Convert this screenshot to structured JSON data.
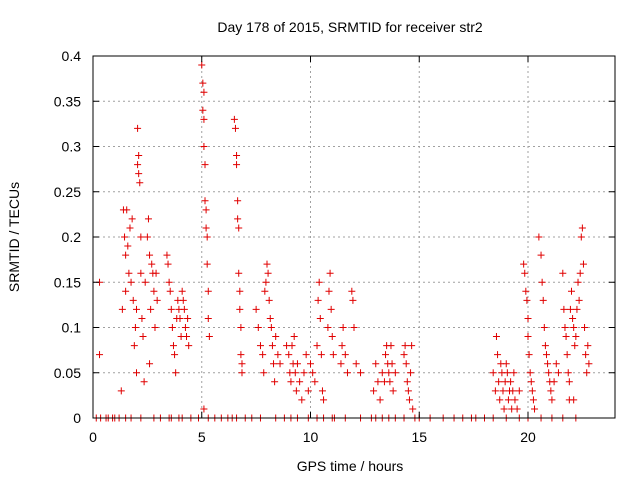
{
  "chart_data": {
    "type": "scatter",
    "title": "Day 178 of 2015, SRMTID for receiver str2",
    "xlabel": "GPS time / hours",
    "ylabel": "SRMTID / TECUs",
    "xlim": [
      0,
      24
    ],
    "ylim": [
      0,
      0.4
    ],
    "xticks": [
      0,
      5,
      10,
      15,
      20
    ],
    "xtick_labels": [
      "0",
      "5",
      "10",
      "15",
      "20"
    ],
    "yticks": [
      0,
      0.05,
      0.1,
      0.15,
      0.2,
      0.25,
      0.3,
      0.35,
      0.4
    ],
    "ytick_labels": [
      "0",
      "0.05",
      "0.1",
      "0.15",
      "0.2",
      "0.25",
      "0.3",
      "0.35",
      "0.4"
    ],
    "grid": true,
    "marker": "+",
    "color": "#e00000",
    "series": [
      {
        "name": "str2",
        "points": [
          [
            0.3,
            0.15
          ],
          [
            0.3,
            0.07
          ],
          [
            1.3,
            0.03
          ],
          [
            1.35,
            0.12
          ],
          [
            1.4,
            0.23
          ],
          [
            1.45,
            0.2
          ],
          [
            1.5,
            0.18
          ],
          [
            1.5,
            0.14
          ],
          [
            1.55,
            0.23
          ],
          [
            1.6,
            0.19
          ],
          [
            1.65,
            0.16
          ],
          [
            1.7,
            0.21
          ],
          [
            1.75,
            0.15
          ],
          [
            1.8,
            0.22
          ],
          [
            1.85,
            0.13
          ],
          [
            1.9,
            0.08
          ],
          [
            1.95,
            0.1
          ],
          [
            2.0,
            0.05
          ],
          [
            2.0,
            0.12
          ],
          [
            2.05,
            0.28
          ],
          [
            2.05,
            0.32
          ],
          [
            2.1,
            0.29
          ],
          [
            2.1,
            0.27
          ],
          [
            2.15,
            0.26
          ],
          [
            2.2,
            0.2
          ],
          [
            2.2,
            0.16
          ],
          [
            2.25,
            0.11
          ],
          [
            2.3,
            0.09
          ],
          [
            2.35,
            0.04
          ],
          [
            2.4,
            0.15
          ],
          [
            2.5,
            0.2
          ],
          [
            2.55,
            0.22
          ],
          [
            2.6,
            0.18
          ],
          [
            2.6,
            0.06
          ],
          [
            2.65,
            0.12
          ],
          [
            2.7,
            0.17
          ],
          [
            2.75,
            0.16
          ],
          [
            2.8,
            0.14
          ],
          [
            2.85,
            0.1
          ],
          [
            2.9,
            0.16
          ],
          [
            2.95,
            0.13
          ],
          [
            3.4,
            0.18
          ],
          [
            3.45,
            0.17
          ],
          [
            3.5,
            0.15
          ],
          [
            3.55,
            0.14
          ],
          [
            3.6,
            0.12
          ],
          [
            3.65,
            0.1
          ],
          [
            3.7,
            0.08
          ],
          [
            3.75,
            0.07
          ],
          [
            3.8,
            0.05
          ],
          [
            3.85,
            0.11
          ],
          [
            3.9,
            0.13
          ],
          [
            3.95,
            0.12
          ],
          [
            4.0,
            0.11
          ],
          [
            4.05,
            0.09
          ],
          [
            4.1,
            0.14
          ],
          [
            4.15,
            0.13
          ],
          [
            4.2,
            0.12
          ],
          [
            4.25,
            0.1
          ],
          [
            4.3,
            0.09
          ],
          [
            4.35,
            0.11
          ],
          [
            4.4,
            0.08
          ],
          [
            5.0,
            0.39
          ],
          [
            5.05,
            0.37
          ],
          [
            5.05,
            0.34
          ],
          [
            5.1,
            0.36
          ],
          [
            5.1,
            0.33
          ],
          [
            5.1,
            0.3
          ],
          [
            5.15,
            0.28
          ],
          [
            5.15,
            0.24
          ],
          [
            5.2,
            0.21
          ],
          [
            5.2,
            0.23
          ],
          [
            5.25,
            0.2
          ],
          [
            5.25,
            0.17
          ],
          [
            5.3,
            0.14
          ],
          [
            5.3,
            0.11
          ],
          [
            5.35,
            0.09
          ],
          [
            5.1,
            0.01
          ],
          [
            6.5,
            0.33
          ],
          [
            6.55,
            0.32
          ],
          [
            6.6,
            0.29
          ],
          [
            6.6,
            0.28
          ],
          [
            6.65,
            0.24
          ],
          [
            6.65,
            0.22
          ],
          [
            6.7,
            0.21
          ],
          [
            6.7,
            0.16
          ],
          [
            6.75,
            0.14
          ],
          [
            6.75,
            0.12
          ],
          [
            6.8,
            0.1
          ],
          [
            6.8,
            0.07
          ],
          [
            6.85,
            0.06
          ],
          [
            6.85,
            0.05
          ],
          [
            7.5,
            0.12
          ],
          [
            7.6,
            0.1
          ],
          [
            7.7,
            0.08
          ],
          [
            7.8,
            0.07
          ],
          [
            7.85,
            0.05
          ],
          [
            7.9,
            0.14
          ],
          [
            7.95,
            0.15
          ],
          [
            8.0,
            0.17
          ],
          [
            8.05,
            0.16
          ],
          [
            8.1,
            0.13
          ],
          [
            8.15,
            0.11
          ],
          [
            8.2,
            0.1
          ],
          [
            8.25,
            0.08
          ],
          [
            8.3,
            0.06
          ],
          [
            8.35,
            0.04
          ],
          [
            8.4,
            0.09
          ],
          [
            8.5,
            0.07
          ],
          [
            8.6,
            0.06
          ],
          [
            8.9,
            0.08
          ],
          [
            9.0,
            0.07
          ],
          [
            9.05,
            0.05
          ],
          [
            9.1,
            0.04
          ],
          [
            9.15,
            0.08
          ],
          [
            9.2,
            0.06
          ],
          [
            9.25,
            0.09
          ],
          [
            9.3,
            0.05
          ],
          [
            9.35,
            0.03
          ],
          [
            9.4,
            0.06
          ],
          [
            9.5,
            0.04
          ],
          [
            9.6,
            0.02
          ],
          [
            9.7,
            0.05
          ],
          [
            9.8,
            0.07
          ],
          [
            9.9,
            0.03
          ],
          [
            10.0,
            0.06
          ],
          [
            10.1,
            0.05
          ],
          [
            10.2,
            0.04
          ],
          [
            10.3,
            0.08
          ],
          [
            10.35,
            0.13
          ],
          [
            10.4,
            0.15
          ],
          [
            10.45,
            0.11
          ],
          [
            10.5,
            0.07
          ],
          [
            10.55,
            0.03
          ],
          [
            10.6,
            0.02
          ],
          [
            10.8,
            0.1
          ],
          [
            10.85,
            0.14
          ],
          [
            10.9,
            0.16
          ],
          [
            10.95,
            0.12
          ],
          [
            11.0,
            0.09
          ],
          [
            11.05,
            0.07
          ],
          [
            11.4,
            0.06
          ],
          [
            11.45,
            0.08
          ],
          [
            11.5,
            0.1
          ],
          [
            11.6,
            0.07
          ],
          [
            11.7,
            0.05
          ],
          [
            11.9,
            0.14
          ],
          [
            11.95,
            0.13
          ],
          [
            12.0,
            0.1
          ],
          [
            12.1,
            0.06
          ],
          [
            12.3,
            0.05
          ],
          [
            12.9,
            0.03
          ],
          [
            13.0,
            0.06
          ],
          [
            13.1,
            0.04
          ],
          [
            13.2,
            0.02
          ],
          [
            13.3,
            0.05
          ],
          [
            13.4,
            0.04
          ],
          [
            13.45,
            0.07
          ],
          [
            13.5,
            0.08
          ],
          [
            13.55,
            0.06
          ],
          [
            13.6,
            0.05
          ],
          [
            13.65,
            0.04
          ],
          [
            13.7,
            0.08
          ],
          [
            13.75,
            0.06
          ],
          [
            13.8,
            0.03
          ],
          [
            13.9,
            0.05
          ],
          [
            14.3,
            0.07
          ],
          [
            14.35,
            0.08
          ],
          [
            14.4,
            0.06
          ],
          [
            14.45,
            0.04
          ],
          [
            14.5,
            0.03
          ],
          [
            14.55,
            0.02
          ],
          [
            14.6,
            0.05
          ],
          [
            14.65,
            0.08
          ],
          [
            14.7,
            0.01
          ],
          [
            18.4,
            0.05
          ],
          [
            18.5,
            0.03
          ],
          [
            18.55,
            0.09
          ],
          [
            18.6,
            0.07
          ],
          [
            18.65,
            0.04
          ],
          [
            18.7,
            0.02
          ],
          [
            18.75,
            0.06
          ],
          [
            18.8,
            0.05
          ],
          [
            18.85,
            0.03
          ],
          [
            18.9,
            0.01
          ],
          [
            18.95,
            0.04
          ],
          [
            19.0,
            0.06
          ],
          [
            19.05,
            0.05
          ],
          [
            19.1,
            0.02
          ],
          [
            19.15,
            0.03
          ],
          [
            19.2,
            0.04
          ],
          [
            19.25,
            0.01
          ],
          [
            19.3,
            0.03
          ],
          [
            19.35,
            0.05
          ],
          [
            19.4,
            0.02
          ],
          [
            19.5,
            0.01
          ],
          [
            19.6,
            0.03
          ],
          [
            19.8,
            0.17
          ],
          [
            19.85,
            0.16
          ],
          [
            19.9,
            0.14
          ],
          [
            19.95,
            0.13
          ],
          [
            20.0,
            0.11
          ],
          [
            20.0,
            0.09
          ],
          [
            20.05,
            0.07
          ],
          [
            20.1,
            0.05
          ],
          [
            20.15,
            0.04
          ],
          [
            20.2,
            0.03
          ],
          [
            20.25,
            0.02
          ],
          [
            20.3,
            0.01
          ],
          [
            20.5,
            0.2
          ],
          [
            20.6,
            0.18
          ],
          [
            20.65,
            0.15
          ],
          [
            20.7,
            0.13
          ],
          [
            20.75,
            0.1
          ],
          [
            20.8,
            0.08
          ],
          [
            20.85,
            0.07
          ],
          [
            20.9,
            0.06
          ],
          [
            20.95,
            0.05
          ],
          [
            21.0,
            0.04
          ],
          [
            21.05,
            0.03
          ],
          [
            21.1,
            0.02
          ],
          [
            21.2,
            0.04
          ],
          [
            21.3,
            0.06
          ],
          [
            21.4,
            0.05
          ],
          [
            21.6,
            0.16
          ],
          [
            21.65,
            0.12
          ],
          [
            21.7,
            0.1
          ],
          [
            21.75,
            0.09
          ],
          [
            21.8,
            0.07
          ],
          [
            21.85,
            0.05
          ],
          [
            21.9,
            0.04
          ],
          [
            21.95,
            0.12
          ],
          [
            22.0,
            0.14
          ],
          [
            22.05,
            0.11
          ],
          [
            22.1,
            0.1
          ],
          [
            22.15,
            0.08
          ],
          [
            22.2,
            0.09
          ],
          [
            22.25,
            0.12
          ],
          [
            22.3,
            0.15
          ],
          [
            22.35,
            0.13
          ],
          [
            22.4,
            0.16
          ],
          [
            22.45,
            0.2
          ],
          [
            22.5,
            0.21
          ],
          [
            22.55,
            0.17
          ],
          [
            22.6,
            0.1
          ],
          [
            22.65,
            0.07
          ],
          [
            22.7,
            0.05
          ],
          [
            22.75,
            0.08
          ],
          [
            22.8,
            0.06
          ],
          [
            22.1,
            0.02
          ],
          [
            21.9,
            0.02
          ]
        ],
        "zero_x": [
          0.15,
          0.35,
          0.6,
          0.7,
          0.9,
          1.0,
          1.2,
          1.5,
          1.75,
          2.2,
          2.8,
          3.1,
          3.5,
          3.6,
          3.95,
          4.1,
          4.5,
          4.85,
          5.3,
          5.6,
          5.9,
          6.2,
          6.4,
          6.6,
          7.0,
          7.3,
          7.7,
          8.4,
          8.8,
          9.1,
          9.4,
          9.9,
          10.3,
          10.6,
          11.0,
          11.1,
          11.6,
          12.3,
          12.8,
          13.0,
          13.3,
          13.6,
          13.9,
          14.3,
          14.8,
          15.0,
          15.5,
          16.1,
          16.6,
          17.0,
          17.4,
          17.6,
          18.0,
          18.4,
          19.0,
          19.6,
          20.0,
          20.6,
          21.1,
          21.6,
          22.2
        ]
      }
    ]
  }
}
